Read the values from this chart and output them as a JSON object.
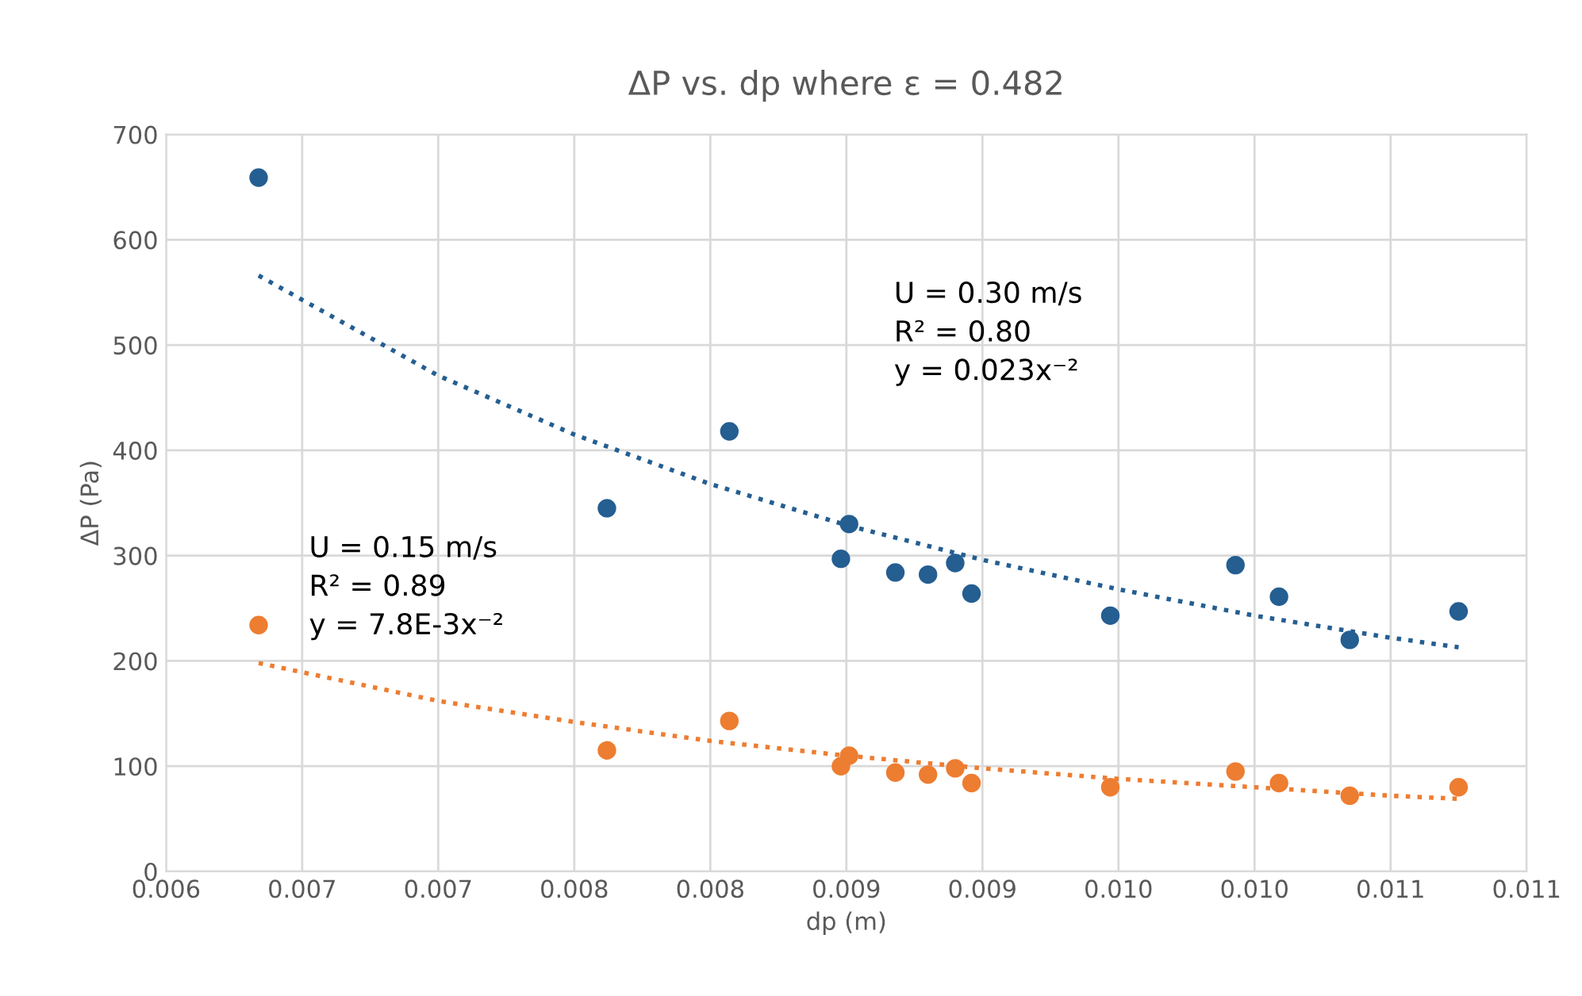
{
  "chart_data": {
    "type": "scatter",
    "title": "ΔP vs. dp where ε = 0.482",
    "xlabel": "dp (m)",
    "ylabel": "ΔP (Pa)",
    "xlim": [
      0.006,
      0.011
    ],
    "xticks": [
      0.006,
      {
        "value": 0.0065,
        "label": "0.007"
      },
      {
        "value": 0.007,
        "label": "0.007"
      },
      {
        "value": 0.0075,
        "label": "0.008"
      },
      {
        "value": 0.008,
        "label": "0.008"
      },
      {
        "value": 0.0085,
        "label": "0.009"
      },
      {
        "value": 0.009,
        "label": "0.009"
      },
      {
        "value": 0.0095,
        "label": "0.010"
      },
      {
        "value": 0.01,
        "label": "0.010"
      },
      {
        "value": 0.0105,
        "label": "0.011"
      },
      {
        "value": 0.011,
        "label": "0.011"
      }
    ],
    "ylim": [
      0,
      700
    ],
    "yticks": [
      0,
      100,
      200,
      300,
      400,
      500,
      600,
      700
    ],
    "grid": true,
    "legend": false,
    "marker": "circle",
    "x": [
      0.00634,
      0.00762,
      0.00807,
      0.00848,
      0.00851,
      0.00868,
      0.0088,
      0.0089,
      0.00896,
      0.00947,
      0.00993,
      0.01009,
      0.01035,
      0.01075
    ],
    "series": [
      {
        "color": "#255e91",
        "values": [
          659,
          345,
          418,
          297,
          330,
          284,
          282,
          293,
          264,
          243,
          291,
          261,
          220,
          247
        ]
      },
      {
        "color": "#ed7d31",
        "values": [
          234,
          115,
          143,
          100,
          110,
          94,
          92,
          98,
          84,
          80,
          95,
          84,
          72,
          80
        ]
      },
      {
        "type": "line",
        "marker": "none",
        "line_style": "dotted",
        "color": "#255e91",
        "x": [
          0.00634,
          0.007,
          0.0075,
          0.008,
          0.0085,
          0.009,
          0.0095,
          0.01,
          0.0105,
          0.01075
        ],
        "values": [
          566,
          471,
          415,
          368,
          329,
          296,
          268,
          243,
          222,
          213
        ]
      },
      {
        "type": "line",
        "marker": "none",
        "line_style": "dotted",
        "color": "#ed7d31",
        "x": [
          0.00634,
          0.007,
          0.0075,
          0.008,
          0.0085,
          0.009,
          0.0095,
          0.01,
          0.0105,
          0.01075
        ],
        "values": [
          198,
          162,
          142,
          124,
          110,
          98,
          88,
          80,
          72,
          69
        ]
      }
    ],
    "annotations": [
      "U = 0.30 m/s\nR² = 0.80\ny = 0.023x⁻²",
      "U = 0.15 m/s\nR² = 0.89\ny = 7.8E-3x⁻²"
    ]
  }
}
